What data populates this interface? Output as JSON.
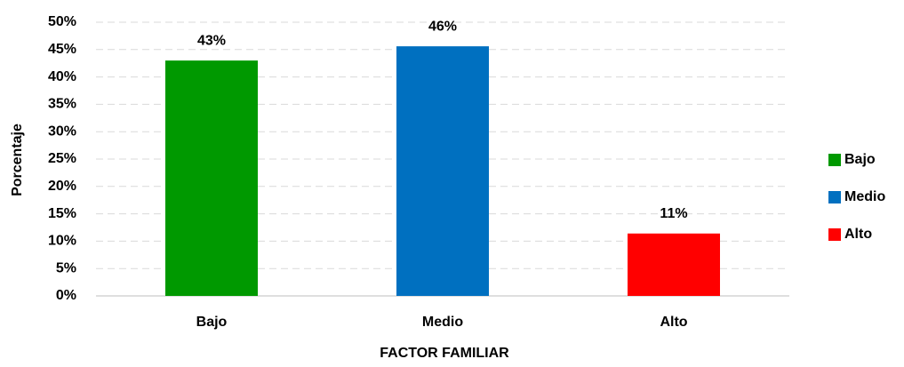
{
  "chart_data": {
    "type": "bar",
    "categories": [
      "Bajo",
      "Medio",
      "Alto"
    ],
    "values": [
      43,
      45.6,
      11.4
    ],
    "value_labels": [
      "43%",
      "46%",
      "11%"
    ],
    "colors": [
      "#009900",
      "#0070c0",
      "#ff0000"
    ],
    "xlabel": "FACTOR FAMILIAR",
    "ylabel": "Porcentaje",
    "ylim": [
      0,
      50
    ],
    "yticks": [
      {
        "value": 0,
        "label": "0%"
      },
      {
        "value": 5,
        "label": "5%"
      },
      {
        "value": 10,
        "label": "10%"
      },
      {
        "value": 15,
        "label": "15%"
      },
      {
        "value": 20,
        "label": "20%"
      },
      {
        "value": 25,
        "label": "25%"
      },
      {
        "value": 30,
        "label": "30%"
      },
      {
        "value": 35,
        "label": "35%"
      },
      {
        "value": 40,
        "label": "40%"
      },
      {
        "value": 45,
        "label": "45%"
      },
      {
        "value": 50,
        "label": "50%"
      }
    ],
    "grid": true,
    "legend": "right"
  }
}
